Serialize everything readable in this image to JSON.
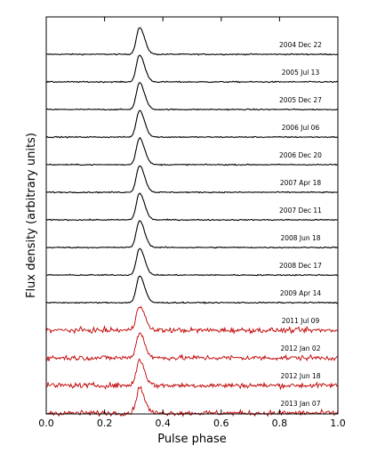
{
  "chart_data": {
    "type": "line",
    "title": "",
    "xlabel": "Pulse phase",
    "ylabel": "Flux density (arbitrary units)",
    "xlim": [
      0.0,
      1.0
    ],
    "xticks": [
      "0.0",
      "0.2",
      "0.4",
      "0.6",
      "0.8",
      "1.0"
    ],
    "grid": false,
    "legend": "none",
    "peak_phase": 0.32,
    "series": [
      {
        "name": "2004 Dec 22",
        "color": "#000000",
        "noise": 0.02,
        "peak": 1.0
      },
      {
        "name": "2005 Jul 13",
        "color": "#000000",
        "noise": 0.02,
        "peak": 1.0
      },
      {
        "name": "2005 Dec 27",
        "color": "#000000",
        "noise": 0.02,
        "peak": 1.0
      },
      {
        "name": "2006 Jul 06",
        "color": "#000000",
        "noise": 0.02,
        "peak": 1.0
      },
      {
        "name": "2006 Dec 20",
        "color": "#000000",
        "noise": 0.02,
        "peak": 1.0
      },
      {
        "name": "2007 Apr 18",
        "color": "#000000",
        "noise": 0.02,
        "peak": 1.0
      },
      {
        "name": "2007 Dec 11",
        "color": "#000000",
        "noise": 0.02,
        "peak": 1.0
      },
      {
        "name": "2008 Jun 18",
        "color": "#000000",
        "noise": 0.02,
        "peak": 1.0
      },
      {
        "name": "2008 Dec 17",
        "color": "#000000",
        "noise": 0.02,
        "peak": 1.0
      },
      {
        "name": "2009 Apr 14",
        "color": "#000000",
        "noise": 0.02,
        "peak": 1.0
      },
      {
        "name": "2011 Jul 09",
        "color": "#c00000",
        "noise": 0.09,
        "peak": 0.95
      },
      {
        "name": "2012 Jan 02",
        "color": "#c00000",
        "noise": 0.09,
        "peak": 0.95
      },
      {
        "name": "2012 Jun 18",
        "color": "#c00000",
        "noise": 0.09,
        "peak": 0.95
      },
      {
        "name": "2013 Jan 07",
        "color": "#c00000",
        "noise": 0.09,
        "peak": 0.95
      }
    ]
  }
}
